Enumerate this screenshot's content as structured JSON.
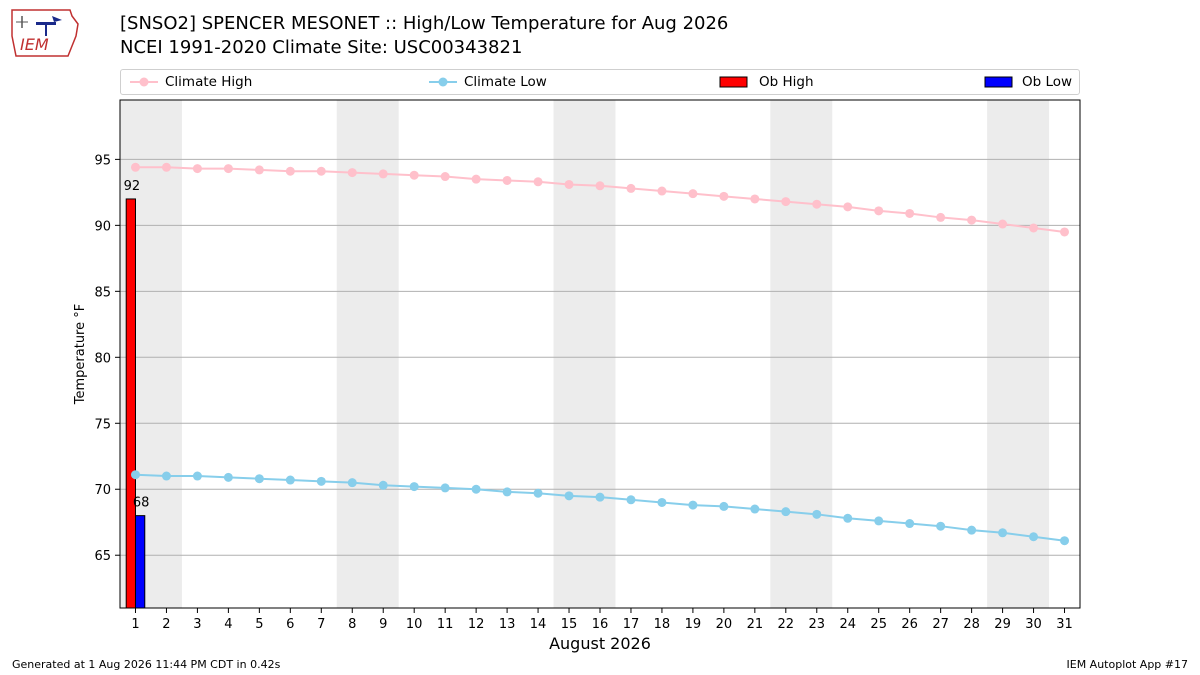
{
  "header": {
    "title_line1": "[SNSO2] SPENCER MESONET :: High/Low Temperature for Aug 2026",
    "title_line2": "NCEI 1991-2020 Climate Site: USC00343821",
    "logo_text": "IEM"
  },
  "footer": {
    "generated": "Generated at 1 Aug 2026 11:44 PM CDT in 0.42s",
    "app": "IEM Autoplot App #17"
  },
  "colors": {
    "climate_high": "#ffc0cb",
    "climate_low": "#87ceeb",
    "ob_high": "#ff0000",
    "ob_low": "#0000ff",
    "weekend_band": "#ececec",
    "grid": "#b0b0b0"
  },
  "chart_data": {
    "type": "bar",
    "xlabel": "August 2026",
    "ylabel": "Temperature °F",
    "xlim": [
      0.5,
      31.5
    ],
    "ylim": [
      61,
      99.5
    ],
    "yticks": [
      65,
      70,
      75,
      80,
      85,
      90,
      95
    ],
    "x": [
      1,
      2,
      3,
      4,
      5,
      6,
      7,
      8,
      9,
      10,
      11,
      12,
      13,
      14,
      15,
      16,
      17,
      18,
      19,
      20,
      21,
      22,
      23,
      24,
      25,
      26,
      27,
      28,
      29,
      30,
      31
    ],
    "xtick_labels": [
      "1",
      "2",
      "3",
      "4",
      "5",
      "6",
      "7",
      "8",
      "9",
      "10",
      "11",
      "12",
      "13",
      "14",
      "15",
      "16",
      "17",
      "18",
      "19",
      "20",
      "21",
      "22",
      "23",
      "24",
      "25",
      "26",
      "27",
      "28",
      "29",
      "30",
      "31"
    ],
    "shaded_days": [
      [
        1,
        2
      ],
      [
        8,
        9
      ],
      [
        15,
        16
      ],
      [
        22,
        23
      ],
      [
        29,
        30
      ]
    ],
    "grid": "horizontal",
    "legend_position": "top",
    "series": [
      {
        "name": "Climate High",
        "kind": "line",
        "values": [
          94.4,
          94.4,
          94.3,
          94.3,
          94.2,
          94.1,
          94.1,
          94.0,
          93.9,
          93.8,
          93.7,
          93.5,
          93.4,
          93.3,
          93.1,
          93.0,
          92.8,
          92.6,
          92.4,
          92.2,
          92.0,
          91.8,
          91.6,
          91.4,
          91.1,
          90.9,
          90.6,
          90.4,
          90.1,
          89.8,
          89.5
        ]
      },
      {
        "name": "Climate Low",
        "kind": "line",
        "values": [
          71.1,
          71.0,
          71.0,
          70.9,
          70.8,
          70.7,
          70.6,
          70.5,
          70.3,
          70.2,
          70.1,
          70.0,
          69.8,
          69.7,
          69.5,
          69.4,
          69.2,
          69.0,
          68.8,
          68.7,
          68.5,
          68.3,
          68.1,
          67.8,
          67.6,
          67.4,
          67.2,
          66.9,
          66.7,
          66.4,
          66.1
        ]
      },
      {
        "name": "Ob High",
        "kind": "bar",
        "x": [
          1
        ],
        "values": [
          92
        ],
        "labels": [
          "92"
        ]
      },
      {
        "name": "Ob Low",
        "kind": "bar",
        "x": [
          1
        ],
        "values": [
          68
        ],
        "labels": [
          "68"
        ]
      }
    ]
  }
}
